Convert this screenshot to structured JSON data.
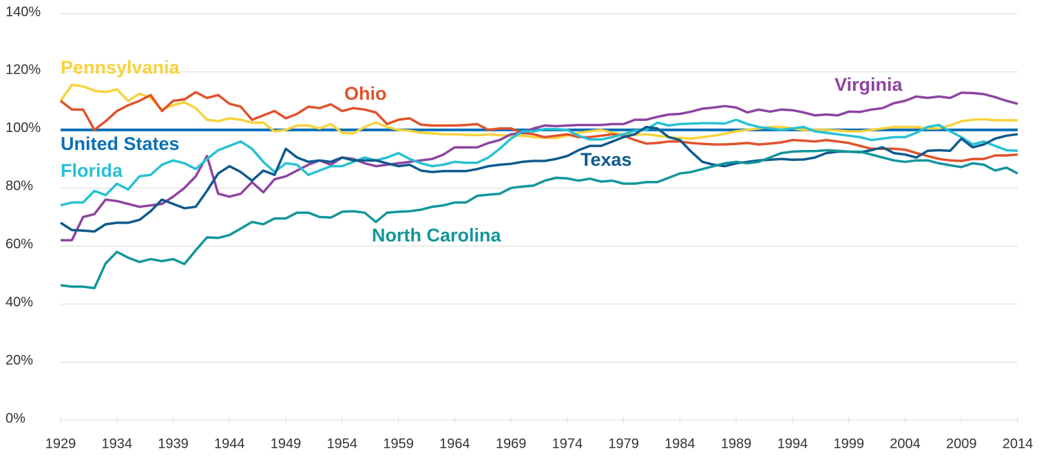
{
  "chart_data": {
    "type": "line",
    "x": [
      1929,
      1930,
      1931,
      1932,
      1933,
      1934,
      1935,
      1936,
      1937,
      1938,
      1939,
      1940,
      1941,
      1942,
      1943,
      1944,
      1945,
      1946,
      1947,
      1948,
      1949,
      1950,
      1951,
      1952,
      1953,
      1954,
      1955,
      1956,
      1957,
      1958,
      1959,
      1960,
      1961,
      1962,
      1963,
      1964,
      1965,
      1966,
      1967,
      1968,
      1969,
      1970,
      1971,
      1972,
      1973,
      1974,
      1975,
      1976,
      1977,
      1978,
      1979,
      1980,
      1981,
      1982,
      1983,
      1984,
      1985,
      1986,
      1987,
      1988,
      1989,
      1990,
      1991,
      1992,
      1993,
      1994,
      1995,
      1996,
      1997,
      1998,
      1999,
      2000,
      2001,
      2002,
      2003,
      2004,
      2005,
      2006,
      2007,
      2008,
      2009,
      2010,
      2011,
      2012,
      2013,
      2014
    ],
    "xlim": [
      1929,
      2014
    ],
    "xticks": [
      1929,
      1934,
      1939,
      1944,
      1949,
      1954,
      1959,
      1964,
      1969,
      1974,
      1979,
      1984,
      1989,
      1994,
      1999,
      2004,
      2009,
      2014
    ],
    "ylim": [
      0,
      140
    ],
    "yticks": [
      {
        "value": 0,
        "label": "0%"
      },
      {
        "value": 20,
        "label": "20%"
      },
      {
        "value": 40,
        "label": "40%"
      },
      {
        "value": 60,
        "label": "60%"
      },
      {
        "value": 80,
        "label": "80%"
      },
      {
        "value": 100,
        "label": "100%"
      },
      {
        "value": 120,
        "label": "120%"
      },
      {
        "value": 140,
        "label": "140%"
      }
    ],
    "grid": true,
    "series": [
      {
        "name": "United States",
        "color": "#0b6fb6",
        "values": [
          100,
          100,
          100,
          100,
          100,
          100,
          100,
          100,
          100,
          100,
          100,
          100,
          100,
          100,
          100,
          100,
          100,
          100,
          100,
          100,
          100,
          100,
          100,
          100,
          100,
          100,
          100,
          100,
          100,
          100,
          100,
          100,
          100,
          100,
          100,
          100,
          100,
          100,
          100,
          100,
          100,
          100,
          100,
          100,
          100,
          100,
          100,
          100,
          100,
          100,
          100,
          100,
          100,
          100,
          100,
          100,
          100,
          100,
          100,
          100,
          100,
          100,
          100,
          100,
          100,
          100,
          100,
          100,
          100,
          100,
          100,
          100,
          100,
          100,
          100,
          100,
          100,
          100,
          100,
          100,
          100,
          100,
          100,
          100,
          100,
          100
        ]
      },
      {
        "name": "Pennsylvania",
        "color": "#f8d23c",
        "values": [
          110,
          115.5,
          115,
          113.5,
          113,
          114,
          110,
          112.5,
          111,
          107,
          108.5,
          109.5,
          107.5,
          103.5,
          103,
          104,
          103.5,
          102.5,
          102.5,
          99.5,
          100,
          101.5,
          101.5,
          100.5,
          102,
          99,
          98.8,
          101,
          102.5,
          101,
          100,
          99.7,
          99,
          98.8,
          98.5,
          98.5,
          98.3,
          98.2,
          98.5,
          98.2,
          98,
          98,
          97.5,
          97.3,
          97.2,
          98,
          99,
          99.5,
          100,
          99,
          98.5,
          98.3,
          98.5,
          98,
          97.5,
          97.2,
          97,
          97.5,
          98,
          98.7,
          99.5,
          100,
          100.5,
          101,
          101,
          100.5,
          100,
          100,
          100,
          99.8,
          99.5,
          99.5,
          100,
          100.5,
          101,
          101,
          101,
          100.5,
          100.5,
          101.5,
          103,
          103.5,
          103.7,
          103.3,
          103.3,
          103.3
        ]
      },
      {
        "name": "Ohio",
        "color": "#e0522b",
        "values": [
          110,
          107,
          107,
          100,
          103,
          106.5,
          108.5,
          110,
          112,
          106.5,
          110,
          110.5,
          113,
          111,
          112,
          109,
          108,
          103.5,
          105,
          106.5,
          104,
          105.5,
          108,
          107.5,
          108.8,
          106.5,
          107.5,
          107,
          106,
          102,
          103.5,
          104,
          101.8,
          101.5,
          101.5,
          101.5,
          101.7,
          102,
          100,
          100.5,
          100.5,
          99,
          98.5,
          97.5,
          98,
          98.5,
          97.5,
          97.5,
          98,
          98.5,
          98,
          96.5,
          95.3,
          95.5,
          96,
          96,
          95.5,
          95.2,
          95,
          95,
          95.2,
          95.5,
          95,
          95.3,
          95.7,
          96.5,
          96.3,
          96,
          96.5,
          96,
          95.5,
          94.5,
          93.5,
          93.5,
          93.5,
          93.2,
          92,
          91,
          90,
          89.5,
          89.3,
          90,
          90,
          91.2,
          91.2,
          91.5
        ]
      },
      {
        "name": "Virginia",
        "color": "#8e44a1",
        "values": [
          62,
          62,
          70,
          71,
          76,
          75.5,
          74.5,
          73.5,
          74,
          74.5,
          77,
          80,
          84,
          91,
          78,
          77,
          78,
          82,
          78.5,
          83,
          84,
          86,
          88,
          89.5,
          88,
          90.5,
          90,
          88.5,
          87.5,
          88,
          88.5,
          89,
          89.5,
          90,
          91.5,
          94,
          94,
          94,
          95.5,
          96.5,
          98.5,
          99,
          100.5,
          101.5,
          101.3,
          101.5,
          101.7,
          101.7,
          101.7,
          102,
          102,
          103.5,
          103.5,
          104.5,
          105.3,
          105.5,
          106.3,
          107.3,
          107.7,
          108.2,
          107.7,
          106,
          107,
          106.3,
          107,
          106.8,
          106,
          105,
          105.3,
          105,
          106.3,
          106.2,
          107,
          107.5,
          109.2,
          110,
          111.5,
          111,
          111.5,
          111,
          112.8,
          112.7,
          112.3,
          111.3,
          110,
          109
        ]
      },
      {
        "name": "Florida",
        "color": "#27c1d4",
        "values": [
          74,
          75,
          75,
          79,
          77.5,
          81.5,
          79.5,
          84,
          84.5,
          88,
          89.5,
          88.5,
          86.5,
          90,
          93,
          94.5,
          96,
          93.5,
          89,
          85.5,
          88.5,
          88,
          84.5,
          86,
          87.5,
          87.5,
          89,
          90.5,
          89.5,
          90.5,
          92,
          90,
          88.5,
          87.5,
          88,
          89,
          88.7,
          88.7,
          90.5,
          93.5,
          97,
          99.5,
          99.5,
          100.3,
          100.3,
          100,
          98,
          96.7,
          96.7,
          97.5,
          98.5,
          99.7,
          100,
          102.5,
          101.5,
          102,
          102.2,
          102.3,
          102.3,
          102.2,
          103.5,
          102,
          101,
          100.5,
          100,
          100.5,
          101,
          99.5,
          99,
          98.5,
          98,
          97.5,
          96.5,
          97,
          97.5,
          97.5,
          99,
          101,
          101.7,
          99.5,
          97.5,
          95,
          96,
          94.5,
          93,
          92.8
        ]
      },
      {
        "name": "Texas",
        "color": "#0d5a8d",
        "values": [
          68,
          65.5,
          65.3,
          65,
          67.5,
          68,
          68,
          69,
          72,
          76,
          74.5,
          73,
          73.5,
          79,
          85,
          87.5,
          85.5,
          82.5,
          86,
          84.5,
          93.5,
          90.5,
          89,
          89.5,
          89,
          90.5,
          89.5,
          89.5,
          89.5,
          88.5,
          87.5,
          88,
          86,
          85.5,
          85.8,
          85.8,
          85.8,
          86.5,
          87.5,
          88,
          88.3,
          89,
          89.3,
          89.3,
          90,
          91,
          93,
          94.5,
          94.5,
          96,
          97.5,
          98.5,
          101,
          100.5,
          97.5,
          96.5,
          92.5,
          89,
          88,
          87.5,
          88.5,
          89,
          89.5,
          89.7,
          90,
          89.7,
          89.8,
          90.5,
          92,
          92.5,
          92.5,
          92.3,
          93,
          94,
          92,
          91.5,
          90.5,
          92.8,
          93,
          92.8,
          97,
          94,
          95,
          97,
          98,
          98.5
        ]
      },
      {
        "name": "North Carolina",
        "color": "#12969b",
        "values": [
          46.5,
          46,
          46,
          45.5,
          54,
          58,
          56,
          54.5,
          55.5,
          54.8,
          55.5,
          53.8,
          58.5,
          63,
          62.8,
          63.8,
          66,
          68.3,
          67.5,
          69.5,
          69.5,
          71.5,
          71.5,
          70,
          69.8,
          71.8,
          72,
          71.5,
          68.3,
          71.5,
          71.8,
          72,
          72.5,
          73.5,
          74,
          75,
          75,
          77.3,
          77.7,
          78,
          80,
          80.5,
          80.8,
          82.5,
          83.5,
          83.3,
          82.5,
          83.2,
          82.2,
          82.5,
          81.5,
          81.5,
          82,
          82,
          83.5,
          85,
          85.5,
          86.5,
          87.5,
          88.5,
          89,
          88.5,
          89,
          90.5,
          92,
          92.5,
          92.7,
          92.7,
          93,
          92.8,
          92.5,
          92.5,
          91.5,
          90.5,
          89.5,
          89,
          89.5,
          89.5,
          88.5,
          87.8,
          87.2,
          88.5,
          88,
          86,
          87,
          85
        ]
      }
    ]
  }
}
